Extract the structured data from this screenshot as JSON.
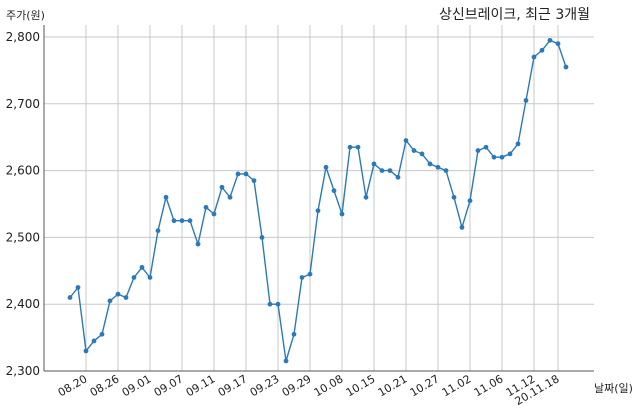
{
  "chart_data": {
    "type": "line",
    "title": "상신브레이크, 최근 3개월",
    "ylabel": "주가(원)",
    "xlabel": "날짜(일)",
    "ylim": [
      2300,
      2800
    ],
    "yticks": [
      2300,
      2400,
      2500,
      2600,
      2700,
      2800
    ],
    "ytick_labels": [
      "2,300",
      "2,400",
      "2,500",
      "2,600",
      "2,700",
      "2,800"
    ],
    "xtick_labels": [
      "08.20",
      "08.26",
      "09.01",
      "09.07",
      "09.11",
      "09.17",
      "09.23",
      "09.29",
      "10.08",
      "10.15",
      "10.21",
      "10.27",
      "11.02",
      "11.06",
      "11.12",
      "20.11.18"
    ],
    "xtick_indices": [
      2,
      6,
      10,
      14,
      18,
      22,
      26,
      30,
      34,
      38,
      42,
      46,
      50,
      54,
      58,
      61
    ],
    "grid": true,
    "color": "#2a7ab9",
    "series": [
      {
        "values": [
          2410,
          2425,
          2330,
          2345,
          2355,
          2405,
          2415,
          2410,
          2440,
          2455,
          2440,
          2510,
          2560,
          2525,
          2525,
          2525,
          2490,
          2545,
          2535,
          2575,
          2560,
          2595,
          2595,
          2585,
          2500,
          2400,
          2400,
          2315,
          2355,
          2440,
          2445,
          2540,
          2605,
          2570,
          2535,
          2635,
          2635,
          2560,
          2610,
          2600,
          2600,
          2590,
          2645,
          2630,
          2625,
          2610,
          2605,
          2600,
          2560,
          2515,
          2555,
          2630,
          2635,
          2620,
          2620,
          2625,
          2640,
          2705,
          2770,
          2780,
          2795,
          2790,
          2755
        ]
      }
    ]
  }
}
